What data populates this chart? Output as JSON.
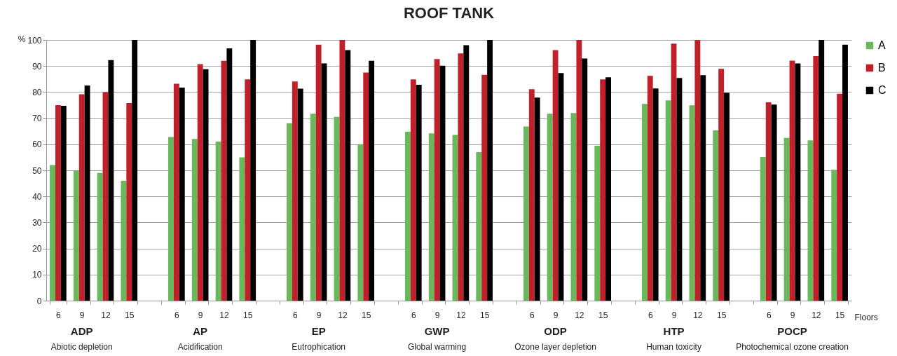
{
  "chart_data": {
    "type": "bar",
    "title": "ROOF TANK",
    "xlabel": "Floors",
    "ylabel": "%",
    "categories": [
      "6",
      "9",
      "12",
      "15",
      null,
      "6",
      "9",
      "12",
      "15",
      null,
      "6",
      "9",
      "12",
      "15",
      null,
      "6",
      "9",
      "12",
      "15",
      null,
      "6",
      "9",
      "12",
      "15",
      null,
      "6",
      "9",
      "12",
      "15",
      null,
      "6",
      "9",
      "12",
      "15"
    ],
    "series": [
      {
        "name": "A",
        "color": "#6ab85c",
        "values": [
          52,
          50,
          49,
          46,
          null,
          62.8,
          62,
          61,
          55,
          null,
          68,
          71.7,
          70.5,
          60,
          null,
          64.8,
          64.2,
          63.6,
          57,
          null,
          66.8,
          71.7,
          72,
          59.4,
          null,
          75.5,
          76.8,
          74.9,
          65.3,
          null,
          55.1,
          62.4,
          61.5,
          50.2
        ]
      },
      {
        "name": "B",
        "color": "#c0202a",
        "values": [
          75,
          79.2,
          80,
          75.8,
          null,
          83.2,
          90.7,
          92,
          84.9,
          null,
          84.1,
          98.2,
          100,
          87.5,
          null,
          84.9,
          92.7,
          94.8,
          86.6,
          null,
          81.1,
          96.1,
          100,
          84.9,
          null,
          86.2,
          98.6,
          100,
          88.9,
          null,
          76.1,
          92.1,
          93.8,
          79.4
        ]
      },
      {
        "name": "C",
        "color": "#000000",
        "values": [
          74.7,
          82.5,
          92.3,
          100,
          null,
          81.7,
          88.8,
          96.8,
          100,
          null,
          81.3,
          91,
          96.1,
          92,
          null,
          82.8,
          90.1,
          98,
          100,
          null,
          77.9,
          87.3,
          92.9,
          85.7,
          null,
          81.4,
          85.4,
          86.5,
          79.7,
          null,
          75.2,
          91,
          100,
          98.2
        ]
      }
    ],
    "ylim": [
      0,
      100
    ],
    "yticks": [
      0,
      10,
      20,
      30,
      40,
      50,
      60,
      70,
      80,
      90,
      100
    ],
    "grid": "y",
    "legend": "right",
    "annotations": [
      "ADP",
      "Abiotic depletion",
      "AP",
      "Acidification",
      "EP",
      "Eutrophication",
      "GWP",
      "Global warming",
      "ODP",
      "Ozone layer depletion",
      "HTP",
      "Human toxicity",
      "POCP",
      "Photochemical ozone creation"
    ]
  }
}
